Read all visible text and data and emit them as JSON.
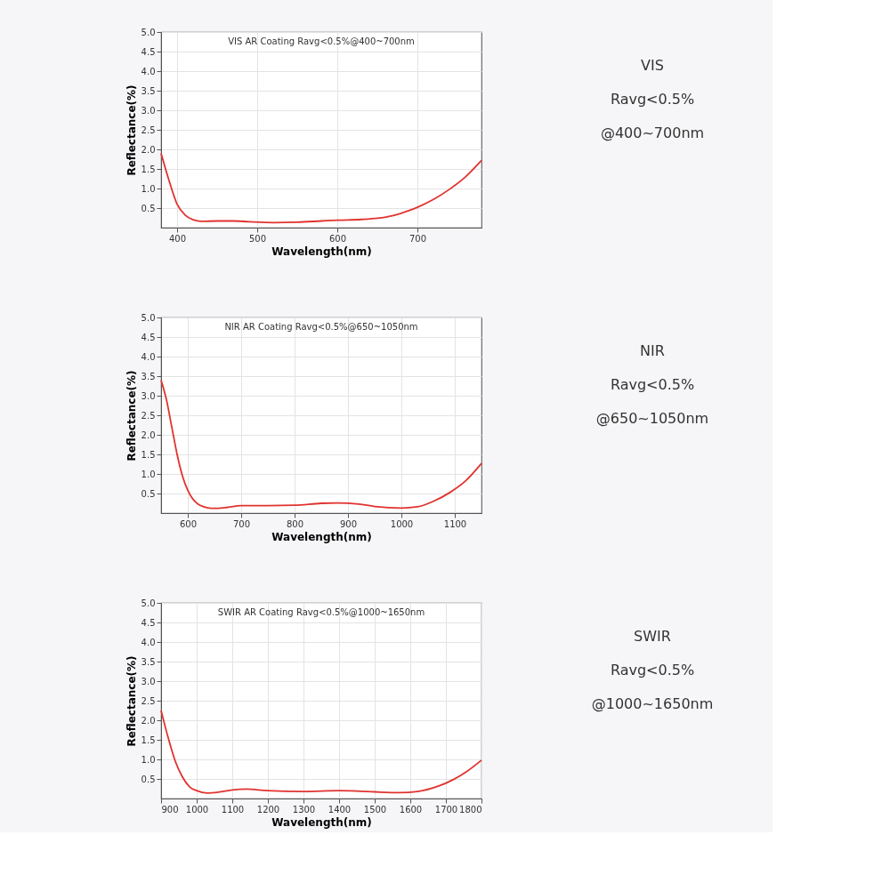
{
  "chart_data": [
    {
      "type": "line",
      "title": "VIS AR Coating Ravg<0.5%@400~700nm",
      "xlabel": "Wavelength(nm)",
      "ylabel": "Reflectance(%)",
      "xlim": [
        380,
        780
      ],
      "xticks": [
        400,
        500,
        600,
        700
      ],
      "ylim": [
        0,
        5
      ],
      "yticks": [
        {
          "value": 0.5,
          "label": "0.5"
        },
        {
          "value": 1,
          "label": "1.0"
        },
        {
          "value": 1.5,
          "label": "1.5"
        },
        {
          "value": 2,
          "label": "2.0"
        },
        {
          "value": 2.5,
          "label": "2.5"
        },
        {
          "value": 3,
          "label": "3.0"
        },
        {
          "value": 3.5,
          "label": "3.5"
        },
        {
          "value": 4,
          "label": "4.0"
        },
        {
          "value": 4.5,
          "label": "4.5"
        },
        {
          "value": 5,
          "label": "5.0"
        }
      ],
      "grid": true,
      "legend": false,
      "marker": "none",
      "line_style": "solid",
      "series": [
        {
          "color": "#e0332f",
          "x": [
            380,
            390,
            400,
            410,
            420,
            430,
            450,
            470,
            490,
            520,
            550,
            580,
            600,
            630,
            650,
            670,
            690,
            700,
            720,
            740,
            760,
            780
          ],
          "values": [
            1.9,
            1.2,
            0.6,
            0.32,
            0.2,
            0.16,
            0.17,
            0.17,
            0.15,
            0.13,
            0.14,
            0.17,
            0.19,
            0.21,
            0.24,
            0.31,
            0.44,
            0.52,
            0.72,
            0.98,
            1.3,
            1.72
          ]
        }
      ]
    },
    {
      "type": "other",
      "title": "VIS",
      "annotations": [
        "Ravg<0.5%",
        "@400~700nm"
      ]
    },
    {
      "type": "line",
      "title": "NIR AR Coating Ravg<0.5%@650~1050nm",
      "xlabel": "Wavelength(nm)",
      "ylabel": "Reflectance(%)",
      "xlim": [
        550,
        1150
      ],
      "xticks": [
        600,
        700,
        800,
        900,
        1000,
        1100
      ],
      "ylim": [
        0,
        5
      ],
      "yticks": [
        {
          "value": 0.5,
          "label": "0.5"
        },
        {
          "value": 1,
          "label": "1.0"
        },
        {
          "value": 1.5,
          "label": "1.5"
        },
        {
          "value": 2,
          "label": "2.0"
        },
        {
          "value": 2.5,
          "label": "2.5"
        },
        {
          "value": 3,
          "label": "3.0"
        },
        {
          "value": 3.5,
          "label": "3.5"
        },
        {
          "value": 4,
          "label": "4.0"
        },
        {
          "value": 4.5,
          "label": "4.5"
        },
        {
          "value": 5,
          "label": "5.0"
        }
      ],
      "grid": true,
      "legend": false,
      "marker": "none",
      "line_style": "solid",
      "series": [
        {
          "color": "#e0332f",
          "x": [
            550,
            560,
            570,
            580,
            590,
            600,
            620,
            640,
            650,
            670,
            700,
            750,
            800,
            850,
            880,
            920,
            950,
            1000,
            1030,
            1060,
            1090,
            1120,
            1150
          ],
          "values": [
            3.4,
            2.9,
            2.2,
            1.5,
            0.95,
            0.58,
            0.22,
            0.13,
            0.12,
            0.14,
            0.19,
            0.19,
            0.2,
            0.25,
            0.26,
            0.23,
            0.17,
            0.13,
            0.16,
            0.3,
            0.52,
            0.82,
            1.27
          ]
        }
      ]
    },
    {
      "type": "other",
      "title": "NIR",
      "annotations": [
        "Ravg<0.5%",
        "@650~1050nm"
      ]
    },
    {
      "type": "line",
      "title": "SWIR AR Coating Ravg<0.5%@1000~1650nm",
      "xlabel": "Wavelength(nm)",
      "ylabel": "Reflectance(%)",
      "xlim": [
        900,
        1800
      ],
      "xticks": [
        900,
        1000,
        1100,
        1200,
        1300,
        1400,
        1500,
        1600,
        1700,
        1800
      ],
      "ylim": [
        0,
        5
      ],
      "yticks": [
        {
          "value": 0.5,
          "label": "0.5"
        },
        {
          "value": 1,
          "label": "1.0"
        },
        {
          "value": 1.5,
          "label": "1.5"
        },
        {
          "value": 2,
          "label": "2.0"
        },
        {
          "value": 2.5,
          "label": "2.5"
        },
        {
          "value": 3,
          "label": "3.0"
        },
        {
          "value": 3.5,
          "label": "3.5"
        },
        {
          "value": 4,
          "label": "4.0"
        },
        {
          "value": 4.5,
          "label": "4.5"
        },
        {
          "value": 5,
          "label": "5.0"
        }
      ],
      "grid": true,
      "legend": false,
      "marker": "none",
      "line_style": "solid",
      "series": [
        {
          "color": "#e0332f",
          "x": [
            900,
            920,
            940,
            960,
            980,
            1000,
            1030,
            1060,
            1100,
            1140,
            1200,
            1300,
            1400,
            1450,
            1500,
            1570,
            1620,
            1680,
            1720,
            1760,
            1800
          ],
          "values": [
            2.25,
            1.55,
            0.95,
            0.55,
            0.3,
            0.2,
            0.14,
            0.16,
            0.22,
            0.24,
            0.2,
            0.18,
            0.2,
            0.19,
            0.17,
            0.15,
            0.18,
            0.32,
            0.48,
            0.7,
            0.98
          ]
        }
      ]
    },
    {
      "type": "other",
      "title": "SWIR",
      "annotations": [
        "Ravg<0.5%",
        "@1000~1650nm"
      ]
    }
  ]
}
